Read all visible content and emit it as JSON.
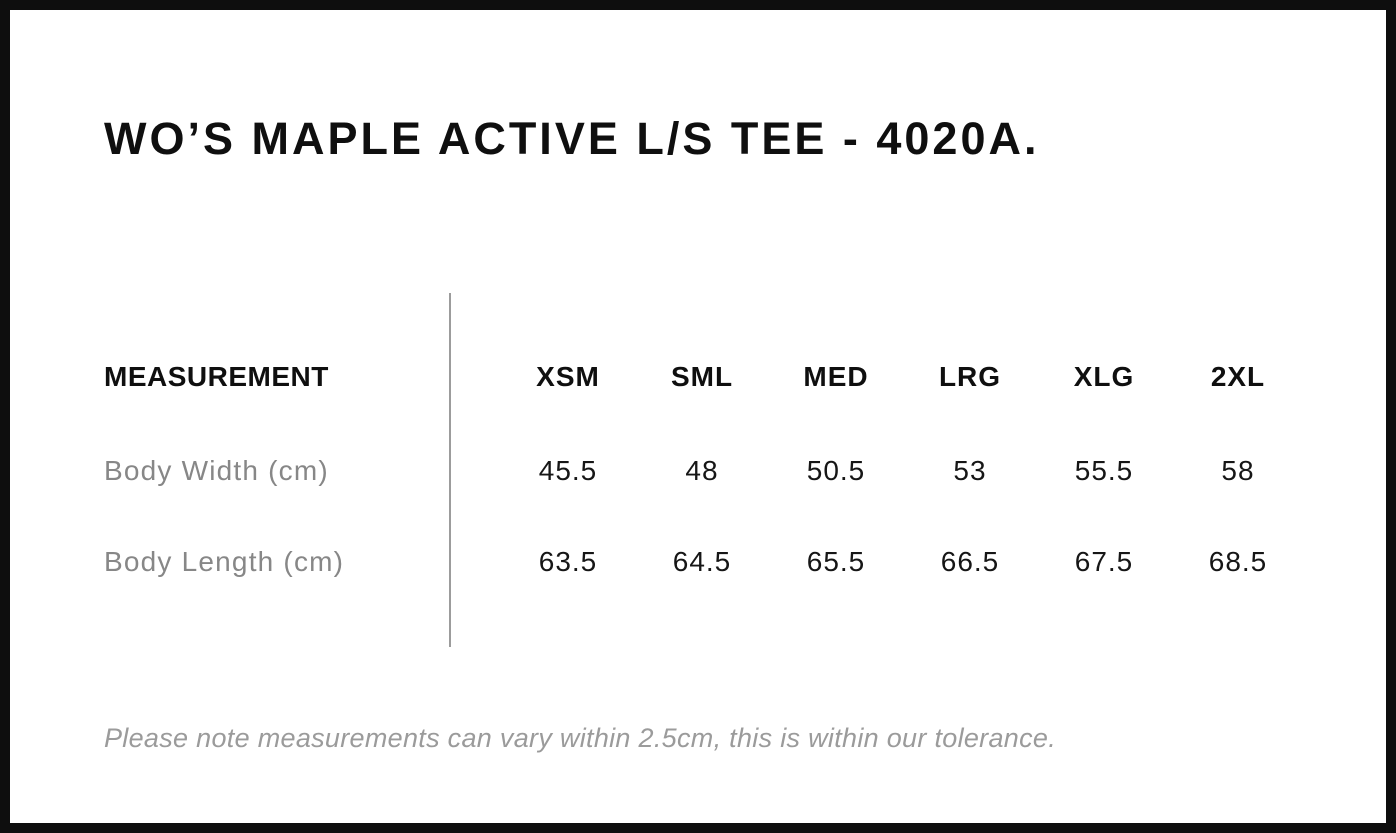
{
  "page": {
    "title": "WO’S MAPLE ACTIVE L/S TEE - 4020A.",
    "note": "Please note measurements can vary within 2.5cm, this is within our tolerance."
  },
  "size_chart": {
    "measurement_header": "MEASUREMENT",
    "sizes": [
      "XSM",
      "SML",
      "MED",
      "LRG",
      "XLG",
      "2XL"
    ],
    "rows": [
      {
        "label": "Body Width (cm)",
        "values": [
          "45.5",
          "48",
          "50.5",
          "53",
          "55.5",
          "58"
        ]
      },
      {
        "label": "Body Length (cm)",
        "values": [
          "63.5",
          "64.5",
          "65.5",
          "66.5",
          "67.5",
          "68.5"
        ]
      }
    ],
    "tolerance_cm": "2.5"
  },
  "colors": {
    "frame_border": "#0e0e0e",
    "heading_text": "#0f0f0f",
    "value_text": "#161616",
    "muted_label": "#878787",
    "note_gray": "#9b9b9b",
    "divider_gray": "#9c9c9c",
    "background": "#ffffff"
  }
}
